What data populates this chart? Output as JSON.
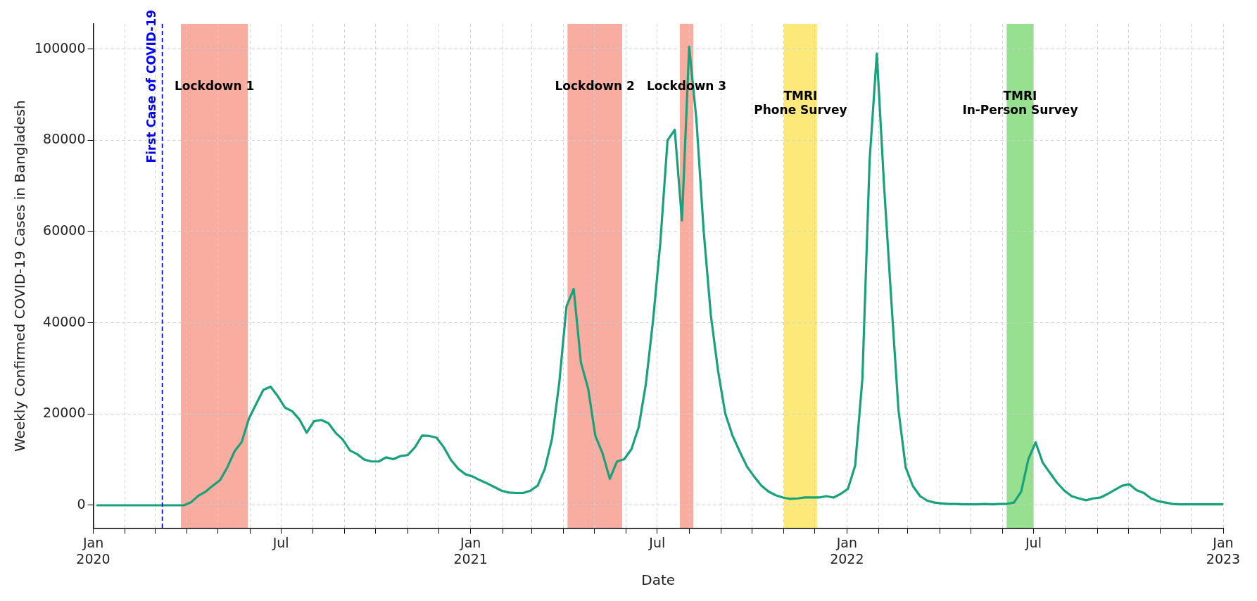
{
  "chart_data": {
    "type": "line",
    "xlabel": "Date",
    "ylabel": "Weekly Confirmed COVID-19 Cases in Bangladesh",
    "color": "#17a27b",
    "marker": "none",
    "line_style": "solid",
    "grid": true,
    "legend": false,
    "xlim": [
      "2020-01-01",
      "2023-01-01"
    ],
    "ylim": [
      -5000,
      105500
    ],
    "yticks": [
      0,
      20000,
      40000,
      60000,
      80000,
      100000
    ],
    "xticks": [
      {
        "value": "2020-01-01",
        "label": "Jan\n2020"
      },
      {
        "value": "2020-02-01",
        "label": null
      },
      {
        "value": "2020-03-01",
        "label": null
      },
      {
        "value": "2020-04-01",
        "label": null
      },
      {
        "value": "2020-05-01",
        "label": null
      },
      {
        "value": "2020-06-01",
        "label": null
      },
      {
        "value": "2020-07-01",
        "label": "Jul"
      },
      {
        "value": "2020-08-01",
        "label": null
      },
      {
        "value": "2020-09-01",
        "label": null
      },
      {
        "value": "2020-10-01",
        "label": null
      },
      {
        "value": "2020-11-01",
        "label": null
      },
      {
        "value": "2020-12-01",
        "label": null
      },
      {
        "value": "2021-01-01",
        "label": "Jan\n2021"
      },
      {
        "value": "2021-02-01",
        "label": null
      },
      {
        "value": "2021-03-01",
        "label": null
      },
      {
        "value": "2021-04-01",
        "label": null
      },
      {
        "value": "2021-05-01",
        "label": null
      },
      {
        "value": "2021-06-01",
        "label": null
      },
      {
        "value": "2021-07-01",
        "label": "Jul"
      },
      {
        "value": "2021-08-01",
        "label": null
      },
      {
        "value": "2021-09-01",
        "label": null
      },
      {
        "value": "2021-10-01",
        "label": null
      },
      {
        "value": "2021-11-01",
        "label": null
      },
      {
        "value": "2021-12-01",
        "label": null
      },
      {
        "value": "2022-01-01",
        "label": "Jan\n2022"
      },
      {
        "value": "2022-02-01",
        "label": null
      },
      {
        "value": "2022-03-01",
        "label": null
      },
      {
        "value": "2022-04-01",
        "label": null
      },
      {
        "value": "2022-05-01",
        "label": null
      },
      {
        "value": "2022-06-01",
        "label": null
      },
      {
        "value": "2022-07-01",
        "label": "Jul"
      },
      {
        "value": "2022-08-01",
        "label": null
      },
      {
        "value": "2022-09-01",
        "label": null
      },
      {
        "value": "2022-10-01",
        "label": null
      },
      {
        "value": "2022-11-01",
        "label": null
      },
      {
        "value": "2022-12-01",
        "label": null
      },
      {
        "value": "2023-01-01",
        "label": "Jan\n2023"
      }
    ],
    "ref_lines": [
      {
        "axis": "x",
        "value": "2020-03-08",
        "label": "First Case of COVID-19",
        "color": "#0000ff",
        "line_style": "dashed"
      }
    ],
    "bands": [
      {
        "axis": "x",
        "from": "2020-03-26",
        "to": "2020-05-30",
        "label": "Lockdown 1",
        "color": "#f9ada0"
      },
      {
        "axis": "x",
        "from": "2021-04-05",
        "to": "2021-05-28",
        "label": "Lockdown 2",
        "color": "#f9ada0"
      },
      {
        "axis": "x",
        "from": "2021-07-23",
        "to": "2021-08-05",
        "label": "Lockdown 3",
        "color": "#f9ada0"
      },
      {
        "axis": "x",
        "from": "2021-11-01",
        "to": "2021-12-03",
        "label": "TMRI\nPhone Survey",
        "color": "#fde87a"
      },
      {
        "axis": "x",
        "from": "2022-06-05",
        "to": "2022-07-01",
        "label": "TMRI\nIn-Person Survey",
        "color": "#97e090"
      }
    ],
    "x": [
      "2020-01-05",
      "2020-01-12",
      "2020-01-19",
      "2020-01-26",
      "2020-02-02",
      "2020-02-09",
      "2020-02-16",
      "2020-02-23",
      "2020-03-01",
      "2020-03-08",
      "2020-03-15",
      "2020-03-22",
      "2020-03-29",
      "2020-04-05",
      "2020-04-12",
      "2020-04-19",
      "2020-04-26",
      "2020-05-03",
      "2020-05-10",
      "2020-05-17",
      "2020-05-24",
      "2020-05-31",
      "2020-06-07",
      "2020-06-14",
      "2020-06-21",
      "2020-06-28",
      "2020-07-05",
      "2020-07-12",
      "2020-07-19",
      "2020-07-26",
      "2020-08-02",
      "2020-08-09",
      "2020-08-16",
      "2020-08-23",
      "2020-08-30",
      "2020-09-06",
      "2020-09-13",
      "2020-09-20",
      "2020-09-27",
      "2020-10-04",
      "2020-10-11",
      "2020-10-18",
      "2020-10-25",
      "2020-11-01",
      "2020-11-08",
      "2020-11-15",
      "2020-11-22",
      "2020-11-29",
      "2020-12-06",
      "2020-12-13",
      "2020-12-20",
      "2020-12-27",
      "2021-01-03",
      "2021-01-10",
      "2021-01-17",
      "2021-01-24",
      "2021-01-31",
      "2021-02-07",
      "2021-02-14",
      "2021-02-21",
      "2021-02-28",
      "2021-03-07",
      "2021-03-14",
      "2021-03-21",
      "2021-03-28",
      "2021-04-04",
      "2021-04-11",
      "2021-04-18",
      "2021-04-25",
      "2021-05-02",
      "2021-05-09",
      "2021-05-16",
      "2021-05-23",
      "2021-05-30",
      "2021-06-06",
      "2021-06-13",
      "2021-06-20",
      "2021-06-27",
      "2021-07-04",
      "2021-07-11",
      "2021-07-18",
      "2021-07-25",
      "2021-08-01",
      "2021-08-08",
      "2021-08-15",
      "2021-08-22",
      "2021-08-29",
      "2021-09-05",
      "2021-09-12",
      "2021-09-19",
      "2021-09-26",
      "2021-10-03",
      "2021-10-10",
      "2021-10-17",
      "2021-10-24",
      "2021-10-31",
      "2021-11-07",
      "2021-11-14",
      "2021-11-21",
      "2021-11-28",
      "2021-12-05",
      "2021-12-12",
      "2021-12-19",
      "2021-12-26",
      "2022-01-02",
      "2022-01-09",
      "2022-01-16",
      "2022-01-23",
      "2022-01-30",
      "2022-02-06",
      "2022-02-13",
      "2022-02-20",
      "2022-02-27",
      "2022-03-06",
      "2022-03-13",
      "2022-03-20",
      "2022-03-27",
      "2022-04-03",
      "2022-04-10",
      "2022-04-17",
      "2022-04-24",
      "2022-05-01",
      "2022-05-08",
      "2022-05-15",
      "2022-05-22",
      "2022-05-29",
      "2022-06-05",
      "2022-06-12",
      "2022-06-19",
      "2022-06-26",
      "2022-07-03",
      "2022-07-10",
      "2022-07-17",
      "2022-07-24",
      "2022-07-31",
      "2022-08-07",
      "2022-08-14",
      "2022-08-21",
      "2022-08-28",
      "2022-09-04",
      "2022-09-11",
      "2022-09-18",
      "2022-09-25",
      "2022-10-02",
      "2022-10-09",
      "2022-10-16",
      "2022-10-23",
      "2022-10-30",
      "2022-11-06",
      "2022-11-13",
      "2022-11-20",
      "2022-11-27",
      "2022-12-04",
      "2022-12-11",
      "2022-12-18",
      "2022-12-25",
      "2023-01-01"
    ],
    "values": [
      0,
      0,
      0,
      0,
      0,
      0,
      0,
      0,
      0,
      0,
      0,
      0,
      0,
      700,
      2100,
      3000,
      4300,
      5500,
      8300,
      11800,
      13900,
      19000,
      22200,
      25300,
      26000,
      23900,
      21400,
      20600,
      18800,
      15900,
      18400,
      18700,
      18000,
      15900,
      14400,
      12000,
      11200,
      10000,
      9600,
      9600,
      10500,
      10100,
      10800,
      11000,
      12700,
      15300,
      15200,
      14800,
      12700,
      9900,
      8000,
      6800,
      6300,
      5500,
      4800,
      4000,
      3200,
      2800,
      2700,
      2700,
      3200,
      4300,
      8000,
      14600,
      26900,
      43600,
      47400,
      31300,
      25600,
      15200,
      11400,
      5800,
      9600,
      10100,
      12300,
      17100,
      26600,
      40600,
      57500,
      80000,
      82300,
      62400,
      100500,
      84600,
      60300,
      41700,
      29500,
      20100,
      15300,
      11800,
      8500,
      6300,
      4300,
      3000,
      2200,
      1700,
      1400,
      1500,
      1700,
      1700,
      1700,
      2000,
      1700,
      2500,
      3600,
      8700,
      27700,
      75500,
      99000,
      70200,
      45100,
      20900,
      8300,
      4200,
      2000,
      1000,
      600,
      400,
      300,
      300,
      200,
      200,
      200,
      300,
      200,
      300,
      300,
      600,
      3000,
      10100,
      13800,
      9300,
      7100,
      4900,
      3200,
      2000,
      1500,
      1100,
      1500,
      1700,
      2500,
      3400,
      4300,
      4600,
      3300,
      2700,
      1500,
      900,
      600,
      300,
      200,
      200,
      200,
      200,
      200,
      200,
      200
    ]
  }
}
